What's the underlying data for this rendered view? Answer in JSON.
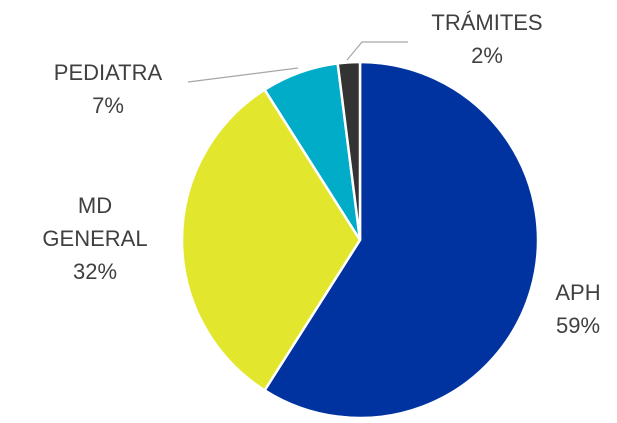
{
  "chart_data": {
    "type": "pie",
    "categories": [
      "APH",
      "MD GENERAL",
      "PEDIATRA",
      "TRÁMITES"
    ],
    "values": [
      59,
      32,
      7,
      2
    ],
    "value_labels": [
      "59%",
      "32%",
      "7%",
      "2%"
    ],
    "colors": [
      "#0033a0",
      "#e2e72e",
      "#00acc8",
      "#333333"
    ]
  }
}
